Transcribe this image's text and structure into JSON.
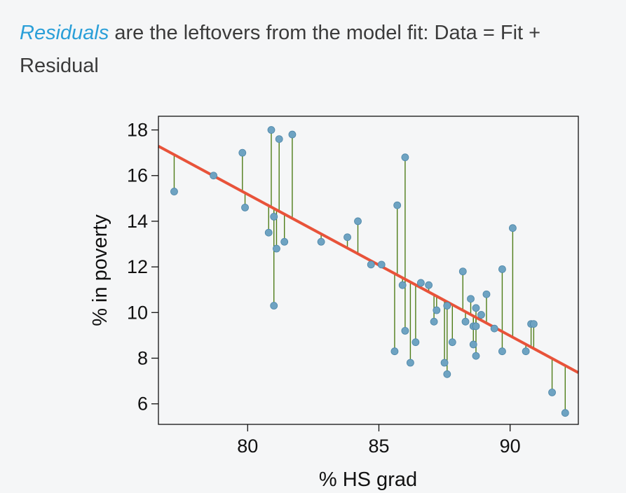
{
  "heading": {
    "emphasis": "Residuals",
    "text": " are the leftovers from the model fit: Data = Fit + Residual"
  },
  "colors": {
    "point": "#6ea3c2",
    "fit_line": "#e8533a",
    "residual": "#4f7d19",
    "link_text": "#2a9fd8"
  },
  "chart_data": {
    "type": "scatter",
    "xlabel": "% HS grad",
    "ylabel": "% in poverty",
    "xlim": [
      76.6,
      92.6
    ],
    "ylim": [
      5.1,
      18.6
    ],
    "xticks": [
      80,
      85,
      90
    ],
    "yticks": [
      6,
      8,
      10,
      12,
      14,
      16,
      18
    ],
    "fit_line": {
      "intercept": 64.78,
      "slope": -0.62
    },
    "points": [
      {
        "x": 77.2,
        "y": 15.3
      },
      {
        "x": 78.7,
        "y": 16.0
      },
      {
        "x": 79.8,
        "y": 17.0
      },
      {
        "x": 79.9,
        "y": 14.6
      },
      {
        "x": 80.8,
        "y": 13.5
      },
      {
        "x": 80.9,
        "y": 18.0
      },
      {
        "x": 81.0,
        "y": 14.2
      },
      {
        "x": 81.0,
        "y": 10.3
      },
      {
        "x": 81.1,
        "y": 12.8
      },
      {
        "x": 81.2,
        "y": 17.6
      },
      {
        "x": 81.4,
        "y": 13.1
      },
      {
        "x": 81.7,
        "y": 17.8
      },
      {
        "x": 82.8,
        "y": 13.1
      },
      {
        "x": 83.8,
        "y": 13.3
      },
      {
        "x": 84.2,
        "y": 14.0
      },
      {
        "x": 84.7,
        "y": 12.1
      },
      {
        "x": 85.1,
        "y": 12.1
      },
      {
        "x": 85.6,
        "y": 8.3
      },
      {
        "x": 85.7,
        "y": 14.7
      },
      {
        "x": 85.9,
        "y": 11.2
      },
      {
        "x": 86.0,
        "y": 16.8
      },
      {
        "x": 86.0,
        "y": 9.2
      },
      {
        "x": 86.2,
        "y": 7.8
      },
      {
        "x": 86.4,
        "y": 8.7
      },
      {
        "x": 86.6,
        "y": 11.3
      },
      {
        "x": 86.9,
        "y": 11.2
      },
      {
        "x": 87.1,
        "y": 9.6
      },
      {
        "x": 87.2,
        "y": 10.1
      },
      {
        "x": 87.5,
        "y": 7.8
      },
      {
        "x": 87.6,
        "y": 10.3
      },
      {
        "x": 87.6,
        "y": 7.3
      },
      {
        "x": 87.8,
        "y": 8.7
      },
      {
        "x": 88.2,
        "y": 11.8
      },
      {
        "x": 88.3,
        "y": 9.6
      },
      {
        "x": 88.5,
        "y": 10.6
      },
      {
        "x": 88.6,
        "y": 9.4
      },
      {
        "x": 88.6,
        "y": 8.6
      },
      {
        "x": 88.7,
        "y": 10.2
      },
      {
        "x": 88.7,
        "y": 9.4
      },
      {
        "x": 88.7,
        "y": 8.1
      },
      {
        "x": 88.9,
        "y": 9.9
      },
      {
        "x": 89.1,
        "y": 10.8
      },
      {
        "x": 89.4,
        "y": 9.3
      },
      {
        "x": 89.7,
        "y": 11.9
      },
      {
        "x": 89.7,
        "y": 8.3
      },
      {
        "x": 90.1,
        "y": 13.7
      },
      {
        "x": 90.6,
        "y": 8.3
      },
      {
        "x": 90.8,
        "y": 9.5
      },
      {
        "x": 90.9,
        "y": 9.5
      },
      {
        "x": 91.6,
        "y": 6.5
      },
      {
        "x": 92.1,
        "y": 5.6
      }
    ]
  }
}
